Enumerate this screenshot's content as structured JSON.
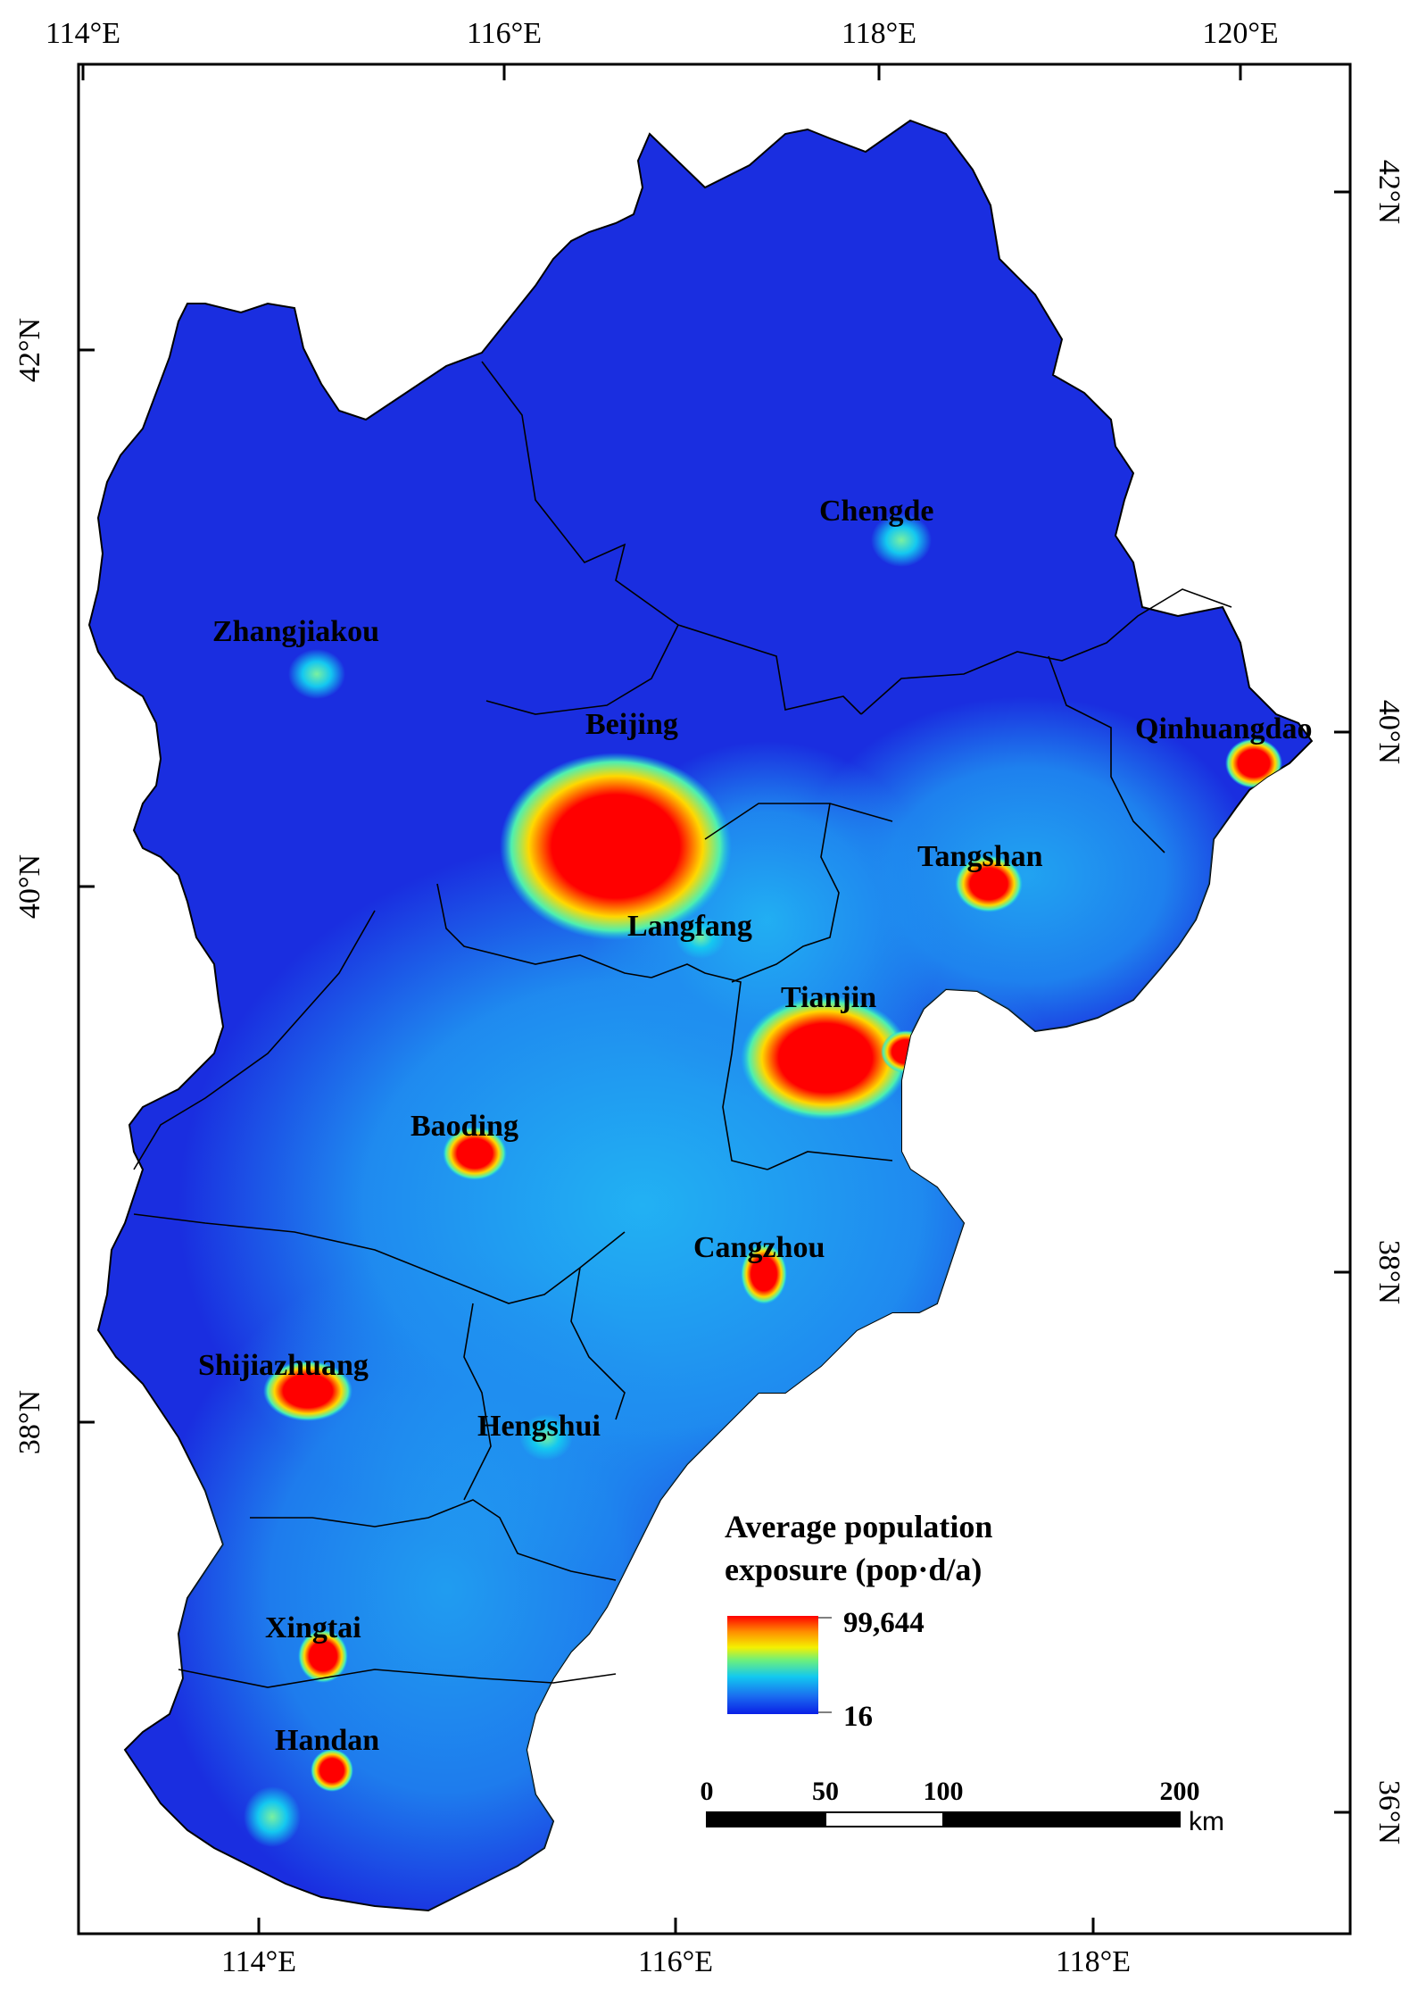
{
  "map": {
    "graticule": {
      "top": [
        "114°E",
        "116°E",
        "118°E",
        "120°E"
      ],
      "bottom": [
        "114°E",
        "116°E",
        "118°E"
      ],
      "left": [
        "42°N",
        "40°N",
        "38°N"
      ],
      "right": [
        "42°N",
        "40°N",
        "38°N",
        "36°N"
      ]
    },
    "cities": [
      {
        "name": "Chengde"
      },
      {
        "name": "Zhangjiakou"
      },
      {
        "name": "Beijing"
      },
      {
        "name": "Qinhuangdao"
      },
      {
        "name": "Tangshan"
      },
      {
        "name": "Langfang"
      },
      {
        "name": "Tianjin"
      },
      {
        "name": "Baoding"
      },
      {
        "name": "Cangzhou"
      },
      {
        "name": "Shijiazhuang"
      },
      {
        "name": "Hengshui"
      },
      {
        "name": "Xingtai"
      },
      {
        "name": "Handan"
      }
    ],
    "legend": {
      "title_line1": "Average population",
      "title_line2": "exposure (pop·d/a)",
      "max_label": "99,644",
      "min_label": "16",
      "max_value": 99644,
      "min_value": 16,
      "colors": [
        "#0a1ee6",
        "#1a6cf0",
        "#12c8f0",
        "#6ef07a",
        "#f5f000",
        "#ff8c00",
        "#ff0000"
      ]
    },
    "scale_bar": {
      "labels": [
        "0",
        "50",
        "100",
        "200"
      ],
      "unit": "km"
    },
    "colors": {
      "background_region": "#1a2ee0",
      "hotspot": "#ff0000",
      "frame": "#000000"
    }
  }
}
